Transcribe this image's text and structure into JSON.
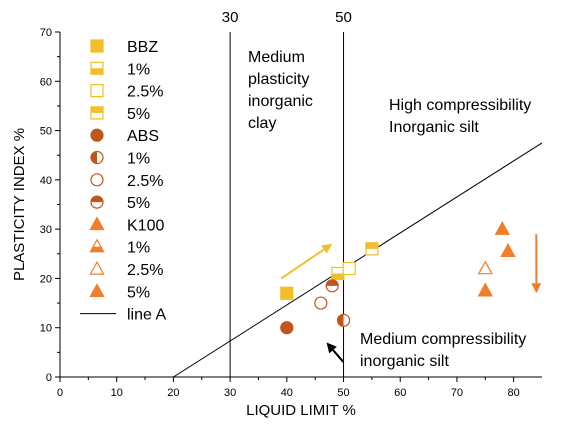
{
  "chart_data": {
    "type": "scatter",
    "xlabel": "LIQUID LIMIT %",
    "ylabel": "PLASTICITY INDEX %",
    "xlim": [
      0,
      85
    ],
    "ylim": [
      0,
      70
    ],
    "xticks": [
      0,
      10,
      20,
      30,
      40,
      50,
      60,
      70,
      80
    ],
    "yticks": [
      0,
      10,
      20,
      30,
      40,
      50,
      60,
      70
    ],
    "grid": false,
    "legend_position": "top-left",
    "colors": {
      "gold": "#F2BE2A",
      "brown": "#C0561A",
      "orange": "#F07E2A",
      "line": "#000000"
    },
    "series": [
      {
        "name": "BBZ",
        "marker": "square",
        "fill": "full",
        "color": "#F2BE2A",
        "points": [
          [
            40,
            17
          ]
        ]
      },
      {
        "name": "1%",
        "marker": "square",
        "fill": "bottom",
        "color": "#F2BE2A",
        "points": [
          [
            49,
            21
          ]
        ]
      },
      {
        "name": "2.5%",
        "marker": "square",
        "fill": "none",
        "color": "#F2BE2A",
        "points": [
          [
            51,
            22
          ]
        ]
      },
      {
        "name": "5%",
        "marker": "square",
        "fill": "top",
        "color": "#F2BE2A",
        "points": [
          [
            55,
            26
          ]
        ]
      },
      {
        "name": "ABS",
        "marker": "circle",
        "fill": "full",
        "color": "#C0561A",
        "points": [
          [
            40,
            10
          ]
        ]
      },
      {
        "name": "1%",
        "marker": "circle",
        "fill": "left",
        "color": "#C0561A",
        "points": [
          [
            50,
            11.5
          ]
        ]
      },
      {
        "name": "2.5%",
        "marker": "circle",
        "fill": "none",
        "color": "#C0561A",
        "points": [
          [
            46,
            15
          ]
        ]
      },
      {
        "name": "5%",
        "marker": "circle",
        "fill": "top",
        "color": "#C0561A",
        "points": [
          [
            48,
            18.5
          ]
        ]
      },
      {
        "name": "K100",
        "marker": "triangle",
        "fill": "full",
        "color": "#F07E2A",
        "points": [
          [
            78,
            30
          ]
        ]
      },
      {
        "name": "1%",
        "marker": "triangle",
        "fill": "bottom",
        "color": "#F07E2A",
        "points": [
          [
            75,
            17.5
          ]
        ]
      },
      {
        "name": "2.5%",
        "marker": "triangle",
        "fill": "none",
        "color": "#F07E2A",
        "points": [
          [
            75,
            22
          ],
          [
            79,
            25.5
          ]
        ]
      },
      {
        "name": "5%",
        "marker": "triangle",
        "fill": "full",
        "color": "#F07E2A",
        "points": [
          [
            75,
            17.5
          ],
          [
            79,
            25.5
          ]
        ]
      }
    ],
    "line_a": {
      "name": "line A",
      "points": [
        [
          20,
          0
        ],
        [
          85,
          47.5
        ]
      ]
    },
    "vertical_lines": [
      {
        "x": 30,
        "label": "30"
      },
      {
        "x": 50,
        "label": "50"
      }
    ],
    "annotations": [
      {
        "lines": [
          "Medium",
          "plasticity",
          "inorganic",
          "clay"
        ]
      },
      {
        "lines": [
          "High compressibility",
          "Inorganic silt"
        ]
      },
      {
        "lines": [
          "Medium compressibility",
          "inorganic silt"
        ]
      }
    ],
    "arrows": [
      {
        "color": "#F2BE2A",
        "from": [
          39,
          20
        ],
        "to": [
          48,
          27
        ]
      },
      {
        "color": "#000000",
        "from": [
          50,
          3
        ],
        "to": [
          47,
          7
        ]
      },
      {
        "color": "#F07E2A",
        "from": [
          84,
          29
        ],
        "to": [
          84,
          17
        ]
      }
    ]
  }
}
